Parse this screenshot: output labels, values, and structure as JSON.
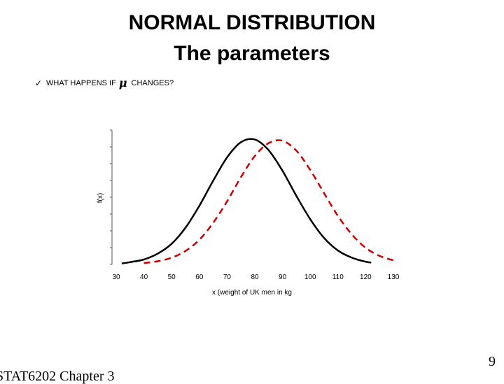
{
  "slide": {
    "title_line1": "NORMAL DISTRIBUTION",
    "title_line2": "The parameters",
    "bullet": {
      "icon": "checkmark-icon",
      "prefix": "WHAT HAPPENS IF",
      "symbol": "μ",
      "suffix": "CHANGES?"
    },
    "footer_left": "STAT6202 Chapter 3",
    "page_number": "9"
  },
  "chart_data": {
    "type": "line",
    "title": "",
    "xlabel": "x (weight of UK men in kg",
    "ylabel": "f(x)",
    "xlim": [
      30,
      130
    ],
    "x_ticks": [
      30,
      40,
      50,
      60,
      70,
      80,
      90,
      100,
      110,
      120,
      130
    ],
    "grid": false,
    "legend": "none",
    "y_axis_minor_ticks": 8,
    "series": [
      {
        "style": "solid",
        "color": "#000000",
        "x": [
          32,
          35,
          40,
          45,
          50,
          55,
          60,
          65,
          70,
          75,
          80,
          85,
          90,
          95,
          100,
          105,
          110,
          115,
          120,
          122
        ],
        "y": [
          0.0002,
          0.0005,
          0.0011,
          0.0024,
          0.0046,
          0.0082,
          0.0131,
          0.0187,
          0.0239,
          0.0273,
          0.0279,
          0.0255,
          0.0209,
          0.0153,
          0.0101,
          0.0059,
          0.0031,
          0.0015,
          0.0006,
          0.0004
        ]
      },
      {
        "style": "dashed",
        "color": "#cc0000",
        "x": [
          40,
          45,
          50,
          55,
          60,
          65,
          70,
          75,
          80,
          85,
          90,
          95,
          100,
          105,
          110,
          115,
          120,
          125,
          130
        ],
        "y": [
          0.0003,
          0.0007,
          0.0015,
          0.003,
          0.0055,
          0.0093,
          0.0141,
          0.0195,
          0.0242,
          0.0271,
          0.0276,
          0.0254,
          0.0211,
          0.0159,
          0.0108,
          0.0067,
          0.0037,
          0.0019,
          0.0009
        ]
      }
    ]
  }
}
